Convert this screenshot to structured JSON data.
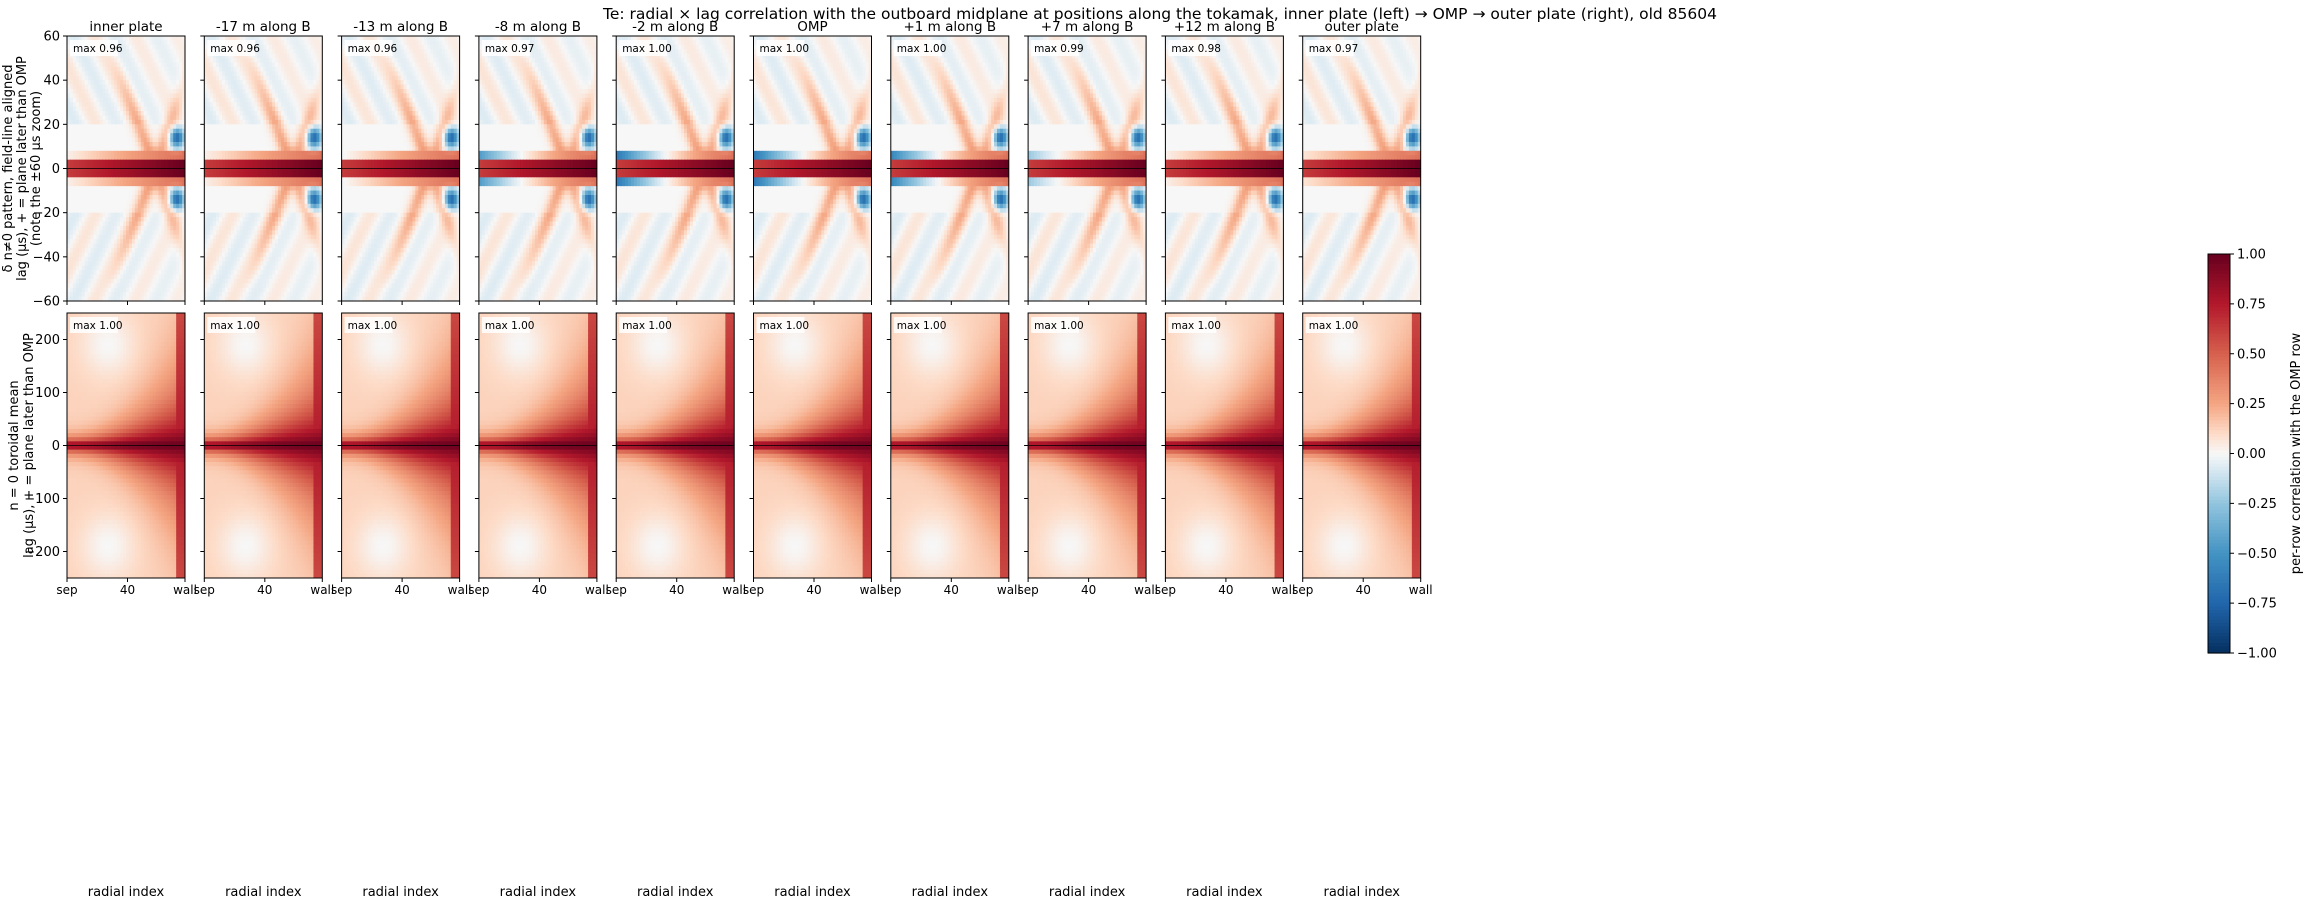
{
  "figure": {
    "title": "Te: radial × lag correlation with the outboard midplane at positions along the tokamak, inner plate (left) → OMP → outer plate (right), old 85604"
  },
  "chart_data": {
    "type": "heatmap",
    "columns": [
      "inner plate",
      "-17 m along B",
      "-13 m along B",
      "-8 m along B",
      "-2 m along B",
      "OMP",
      "+1 m along B",
      "+7 m along B",
      "+12 m along B",
      "outer plate"
    ],
    "x": {
      "label": "radial index",
      "range": [
        0,
        78
      ],
      "ticks": [
        {
          "v": 0,
          "label": "sep"
        },
        {
          "v": 40,
          "label": "40"
        },
        {
          "v": 78,
          "label": "wall"
        }
      ]
    },
    "rows": [
      {
        "key": "fluct",
        "ylabel_lines": [
          "δ n≠0 pattern, field-line aligned",
          "lag (μs), + = plane later than OMP",
          "(note the ±60 μs zoom)"
        ],
        "ylim": [
          -60,
          60
        ],
        "yticks": [
          -60,
          -40,
          -20,
          0,
          20,
          40,
          60
        ],
        "max_labels": [
          "max 0.96",
          "max 0.96",
          "max 0.96",
          "max 0.97",
          "max 1.00",
          "max 1.00",
          "max 1.00",
          "max 0.99",
          "max 0.98",
          "max 0.97"
        ],
        "neg_core_strength": [
          0.1,
          0.1,
          0.15,
          0.75,
          1.0,
          1.0,
          0.9,
          0.45,
          0.1,
          0.05
        ]
      },
      {
        "key": "mean",
        "ylabel_lines": [
          "n = 0 toroidal mean",
          "lag (μs), + = plane later than OMP"
        ],
        "ylim": [
          -250,
          250
        ],
        "yticks": [
          -200,
          -100,
          0,
          100,
          200
        ],
        "max_labels": [
          "max 1.00",
          "max 1.00",
          "max 1.00",
          "max 1.00",
          "max 1.00",
          "max 1.00",
          "max 1.00",
          "max 1.00",
          "max 1.00",
          "max 1.00"
        ]
      }
    ],
    "colorbar": {
      "label": "per-row correlation with the OMP row",
      "range": [
        -1.0,
        1.0
      ],
      "ticks": [
        "-1.00",
        "-0.75",
        "-0.50",
        "-0.25",
        "0.00",
        "0.25",
        "0.50",
        "0.75",
        "1.00"
      ],
      "colormap": "RdBu_r"
    }
  }
}
